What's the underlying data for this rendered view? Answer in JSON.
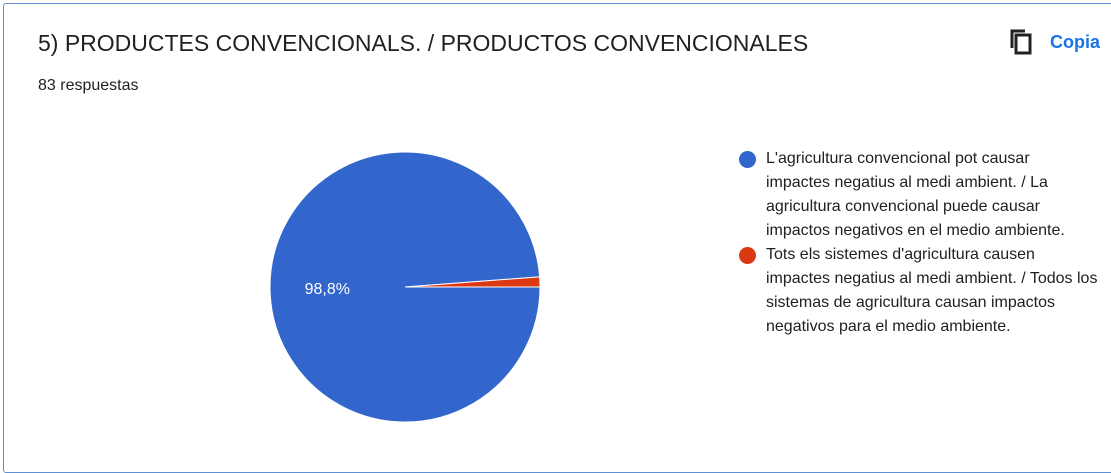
{
  "question": {
    "title": "5) PRODUCTES CONVENCIONALS. / PRODUCTOS CONVENCIONALES",
    "response_count": "83 respuestas"
  },
  "toolbar": {
    "copy_label": "Copia",
    "copy_icon": "copy-icon"
  },
  "chart_data": {
    "type": "pie",
    "slices": [
      {
        "label": "L'agricultura convencional pot causar impactes negatius al medi ambient. / La agricultura convencional puede causar impactos negativos en el medio ambiente.",
        "value": 98.8,
        "display": "98,8%",
        "color": "#3366cc"
      },
      {
        "label": "Tots els sistemes d'agricultura causen impactes negatius al medi ambient. / Todos los sistemas de agricultura causan impactos negativos para el medio ambiente.",
        "value": 1.2,
        "display": "",
        "color": "#dc3912"
      }
    ],
    "legend_position": "right"
  }
}
